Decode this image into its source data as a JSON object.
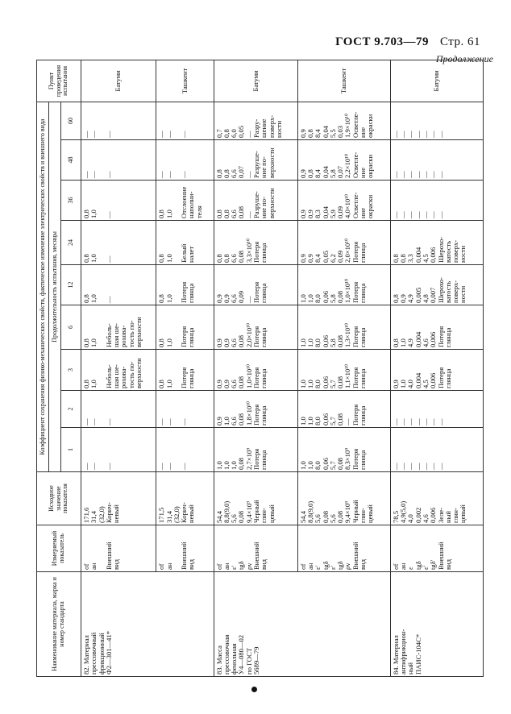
{
  "header": {
    "title": "ГОСТ 9.703—79",
    "page": "Стр. 61",
    "continuation": "Продолжение"
  },
  "table": {
    "headers": {
      "name": "Наименование материала, марка и номер стандарта",
      "measure": "Измеряемый показатель",
      "initial": "Исходное значение показателя",
      "coefficient": "Коэффициент сохранения физико-механических свойств, фактическое изменение электрических свойств и внешнего вида",
      "duration": "Продолжительность испытания, месяцы",
      "months": [
        1,
        2,
        3,
        6,
        12,
        24,
        36,
        48,
        60
      ],
      "place": "Пункт проведения испытания"
    },
    "rows": [
      {
        "name": "82. Материал\nпрессовочный\nфрикционный\nФ2—301—41*",
        "measure": "σf\naн\n\nВнешний\nвид",
        "initial": "171,6\n31,4\n(32,0)\nКорич-\nневый",
        "values": [
          "—\n—\n\n—",
          "—\n—\n\n—",
          "0,8\n1,0\n\nНеболь-\nшая ше-\nрохова-\nтость по-\nверхности",
          "0,8\n1,0\n\nНеболь-\nшая ше-\nрохова-\nтость по-\nверхности",
          "0,8\n1,0\n\n—",
          "0,8\n1,0\n\n—",
          "0,8\n1,0\n\n—",
          "—\n—\n\n—",
          "—\n—\n\n—"
        ],
        "place": "Батуми"
      },
      {
        "measure": "σf\naн\n\nВнешний\nвид",
        "initial": "171,5\n31,4\n(32,0)\nКорич-\nневый",
        "values": [
          "—\n—\n\n—",
          "—\n—\n\n—",
          "0,8\n1,0\n\nПотеря\nглянца",
          "0,8\n1,0\n\nПотеря\nглянца",
          "0,8\n1,0\n\nПотеря\nглянца",
          "0,8\n1,0\n\nБелый\nналет",
          "0,8\n1,0\n\nОтслоение\nнаполни-\nтеля",
          "—\n—\n\n—",
          "—\n—\n\n—"
        ],
        "place": "Ташкент"
      },
      {
        "name": "83. Масса\nпрессовочная\nфенольная\nУ4—080—02\nпо ГОСТ\n5689—79",
        "measure": "σf\naн\nε'\ntgδ\nρv\nВнешний\nвид",
        "initial": "54,4\n8,8(9,0)\n5,6\n0,08\n9,4×10⁹\nЧерный\nглян-\nцевый",
        "values": [
          "1,0\n1,0\n1,0\n0,08\n2,7×10⁹\nПотеря\nглянца",
          "0,9\n1,0\n6,6\n0,08\n1,8×10¹⁰\nПотеря\nглянца",
          "0,9\n0,9\n6,6\n0,08\n1,0×10¹⁰\nПотеря\nглянца",
          "0,9\n0,9\n6,6\n0,08\n2,0×10¹⁰\nПотеря\nглянца",
          "0,9\n0,9\n6,6\n0,09\n—\nПотеря\nглянца",
          "0,8\n0,8\n6,6\n0,08\n3,3×10¹⁰\nПотеря\nглянца",
          "0,8\n0,8\n6,6\n0,08\n—\nРазруше-\nние по-\nверхности",
          "0,8\n0,8\n6,6\n0,07\n—\nРазруше-\nние по-\nверхности",
          "0,7\n0,8\n6,0\n0,05\n—\nРазру-\nшение\nповерх-\nности"
        ],
        "place": "Батуми"
      },
      {
        "measure": "σf\naн\nε'\ntgδ\nε'\ntgδ\nρv\nВнешний\nвид",
        "initial": "54,4\n8,8(9,0)\n5,6\n0,08\n5,6\n0,08\n9,4×10⁹\nЧерный\nглян-\nцевый",
        "values": [
          "1,0\n1,0\n8,0\n0,06\n5,7\n0,08\n8,3×10⁹\nПотеря\nглянца",
          "1,0\n1,0\n8,0\n0,06\n5,7\n0,08\n—\nПотеря\nглянца",
          "1,0\n1,0\n8,0\n0,06\n5,7\n0,08\n1,1×10¹⁰\nПотеря\nглянца",
          "1,0\n1,0\n8,0\n0,06\n5,8\n0,08\n1,3×10¹⁰\nПотеря\nглянца",
          "1,0\n1,0\n8,0\n0,06\n5,8\n0,08\n1,0×10¹⁰\nПотеря\nглянца",
          "0,9\n0,9\n8,4\n0,05\n6,2\n0,09\n2,0×10¹⁰\nПотеря\nглянца",
          "0,9\n0,9\n8,3\n0,04\n5,9\n0,09\n4,0×10¹⁰\nОсветле-\nние\nокраски",
          "0,9\n0,8\n8,4\n0,04\n5,8\n0,07\n2,2×10¹⁰\nОсветле-\nние\nокраски",
          "0,9\n0,8\n8,4\n0,04\n5,5\n0,03\n1,9×10¹⁰\nОсветле-\nние\nокраски"
        ],
        "place": "Ташкент"
      },
      {
        "name": "84. Материал\nантифрикцион-\nный\nПАИС-104С*",
        "measure": "σf\naн\nε\ntgδ\nε'\ntgδ'\nВнешний\nвид",
        "initial": "78,5\n4,9(5,0)\n4,0\n0,002\n4,6\n0,006\nЗеле-\nный\nглян-\nцевый",
        "values": [
          "—\n—\n—\n—\n—\n—\n—",
          "—\n—\n—\n—\n—\n—\n—",
          "0,9\n1,0\n4,0\n0,004\n4,5\n0,006\nПотеря\nглянца",
          "0,8\n1,0\n4,9\n0,004\n4,6\n0,006\nПотеря\nглянца",
          "0,8\n0,9\n4,9\n0,005\n4,8\n0,007\nШерохо-\nватость\nповерх-\nности",
          "0,8\n0,8\n3,3\n0,004\n4,5\n0,006\nШерохо-\nватость\nповерх-\nности",
          "—\n—\n—\n—\n—\n—\n—",
          "—\n—\n—\n—\n—\n—\n—",
          "—\n—\n—\n—\n—\n—\n—"
        ],
        "place": "Батуми"
      }
    ]
  }
}
